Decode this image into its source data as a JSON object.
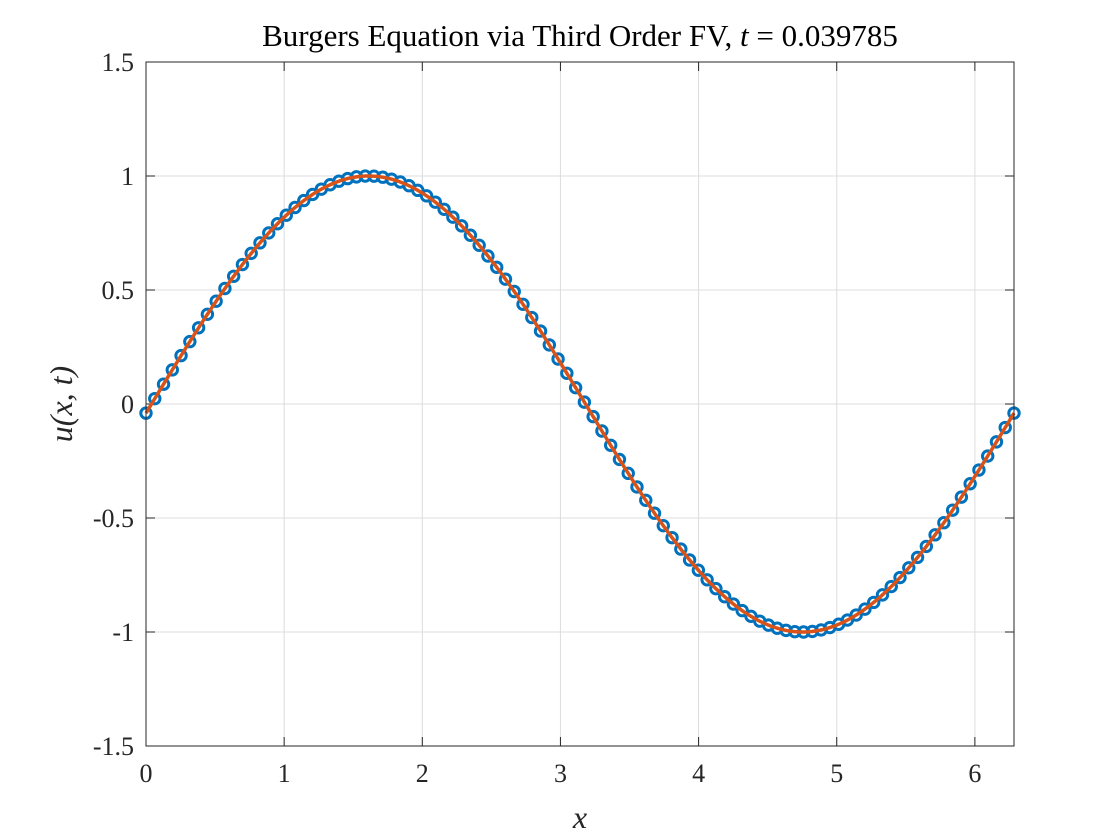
{
  "chart_data": {
    "type": "line",
    "title_main": "Burgers Equation via Third Order FV, ",
    "title_var": "t",
    "title_eq": " = 0.039785",
    "xlabel": "x",
    "ylabel": "u(x, t)",
    "xlim": [
      0,
      6.283185
    ],
    "ylim": [
      -1.5,
      1.5
    ],
    "xticks": [
      0,
      1,
      2,
      3,
      4,
      5,
      6
    ],
    "xtick_labels": [
      "0",
      "1",
      "2",
      "3",
      "4",
      "5",
      "6"
    ],
    "yticks": [
      -1.5,
      -1,
      -0.5,
      0,
      0.5,
      1,
      1.5
    ],
    "ytick_labels": [
      "-1.5",
      "-1",
      "-0.5",
      "0",
      "0.5",
      "1",
      "1.5"
    ],
    "grid": true,
    "t": 0.039785,
    "series": [
      {
        "style": "markers",
        "color": "#0072BD",
        "marker": "circle",
        "x_start": 0.0,
        "x_end": 6.283185,
        "n_points": 100,
        "function": "sin(x - 0.04)"
      },
      {
        "style": "line",
        "color": "#D95319",
        "x_start": 0.0,
        "x_end": 6.283185,
        "n_points": 400,
        "function": "sin(x - 0.04)"
      }
    ]
  }
}
